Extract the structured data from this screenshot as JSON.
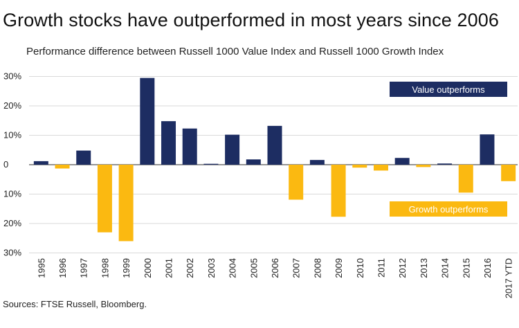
{
  "title": "Growth stocks have outperformed in most years since 2006",
  "subtitle": "Performance difference between Russell 1000 Value Index and Russell 1000 Growth Index",
  "source": "Sources: FTSE Russell, Bloomberg.",
  "colors": {
    "value": "#1d2d62",
    "growth": "#fbb911",
    "grid": "#d9d9d9",
    "axis": "#555555"
  },
  "chart_data": {
    "type": "bar",
    "categories": [
      "1995",
      "1996",
      "1997",
      "1998",
      "1999",
      "2000",
      "2001",
      "2002",
      "2003",
      "2004",
      "2005",
      "2006",
      "2007",
      "2008",
      "2009",
      "2010",
      "2011",
      "2012",
      "2013",
      "2014",
      "2015",
      "2016",
      "2017 YTD"
    ],
    "values": [
      1.2,
      -1.3,
      4.8,
      -23.0,
      -26.0,
      29.5,
      14.8,
      12.3,
      0.3,
      10.2,
      1.8,
      13.2,
      -11.9,
      1.6,
      -17.7,
      -1.0,
      -2.0,
      2.3,
      -0.8,
      0.4,
      -9.5,
      10.3,
      -5.6
    ],
    "yticks": [
      30,
      20,
      10,
      0,
      -10,
      -20,
      -30
    ],
    "ytick_labels": [
      "30%",
      "20%",
      "10%",
      "0",
      "10%",
      "20%",
      "30%"
    ],
    "ylim": [
      -30,
      30
    ],
    "grid": true,
    "legend": [
      {
        "label": "Value outperforms",
        "color": "#1d2d62",
        "applies_to": "positive",
        "placement": "upper-right"
      },
      {
        "label": "Growth outperforms",
        "color": "#fbb911",
        "applies_to": "negative",
        "placement": "lower-right"
      }
    ]
  }
}
